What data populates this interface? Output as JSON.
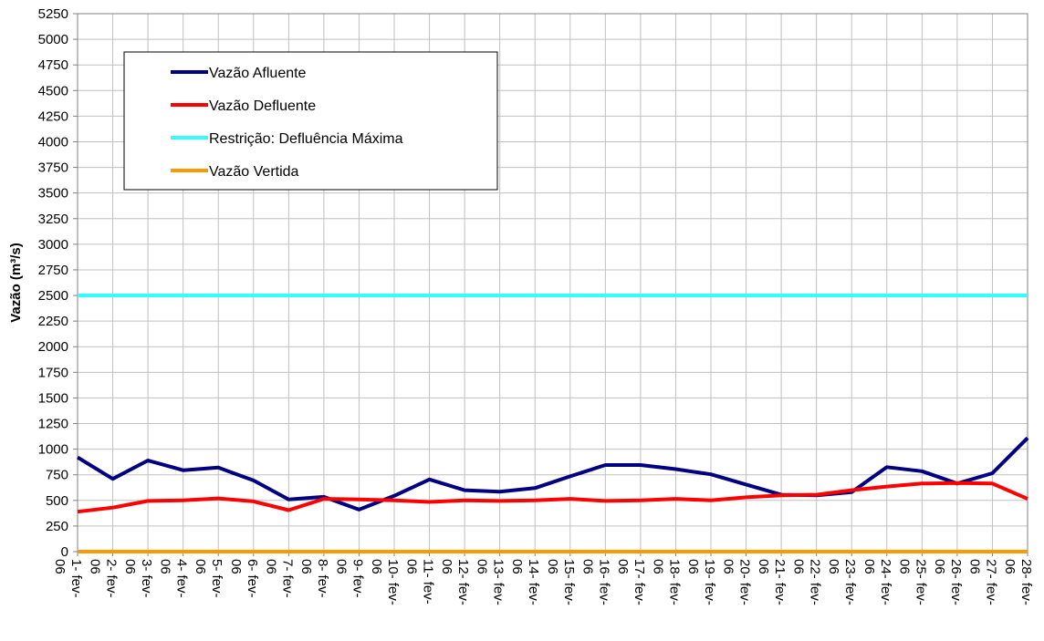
{
  "chart_data": {
    "type": "line",
    "ylabel": "Vazão (m³/s)",
    "xlabel": "",
    "ylim": [
      0,
      5250
    ],
    "yticks": [
      0,
      250,
      500,
      750,
      1000,
      1250,
      1500,
      1750,
      2000,
      2250,
      2500,
      2750,
      3000,
      3250,
      3500,
      3750,
      4000,
      4250,
      4500,
      4750,
      5000,
      5250
    ],
    "grid": true,
    "legend_position": "top-left",
    "categories": [
      "1- fev- 06",
      "2- fev- 06",
      "3- fev- 06",
      "4- fev- 06",
      "5- fev- 06",
      "6- fev- 06",
      "7- fev- 06",
      "8- fev- 06",
      "9- fev- 06",
      "10- fev- 06",
      "11- fev- 06",
      "12- fev- 06",
      "13- fev- 06",
      "14- fev- 06",
      "15- fev- 06",
      "16- fev- 06",
      "17- fev- 06",
      "18- fev- 06",
      "19- fev- 06",
      "20- fev- 06",
      "21- fev- 06",
      "22- fev- 06",
      "23- fev- 06",
      "24- fev- 06",
      "25- fev- 06",
      "26- fev- 06",
      "27- fev- 06",
      "28- fev- 06"
    ],
    "series": [
      {
        "name": "Vazão Afluente",
        "color": "#000080",
        "values": [
          920,
          710,
          890,
          795,
          820,
          695,
          510,
          535,
          410,
          545,
          705,
          600,
          585,
          620,
          735,
          845,
          845,
          805,
          755,
          655,
          555,
          550,
          580,
          825,
          785,
          665,
          765,
          1110
        ]
      },
      {
        "name": "Vazão Defluente",
        "color": "#ff0000",
        "values": [
          390,
          430,
          495,
          500,
          520,
          490,
          405,
          515,
          510,
          500,
          485,
          500,
          495,
          500,
          515,
          495,
          500,
          515,
          500,
          530,
          550,
          555,
          600,
          635,
          665,
          670,
          665,
          515
        ]
      },
      {
        "name": "Restrição: Defluência Máxima",
        "color": "#33ffff",
        "values": [
          2500,
          2500,
          2500,
          2500,
          2500,
          2500,
          2500,
          2500,
          2500,
          2500,
          2500,
          2500,
          2500,
          2500,
          2500,
          2500,
          2500,
          2500,
          2500,
          2500,
          2500,
          2500,
          2500,
          2500,
          2500,
          2500,
          2500,
          2500
        ]
      },
      {
        "name": "Vazão Vertida",
        "color": "#ff9900",
        "values": [
          0,
          0,
          0,
          0,
          0,
          0,
          0,
          0,
          0,
          0,
          0,
          0,
          0,
          0,
          0,
          0,
          0,
          0,
          0,
          0,
          0,
          0,
          0,
          0,
          0,
          0,
          0,
          0
        ]
      }
    ]
  }
}
